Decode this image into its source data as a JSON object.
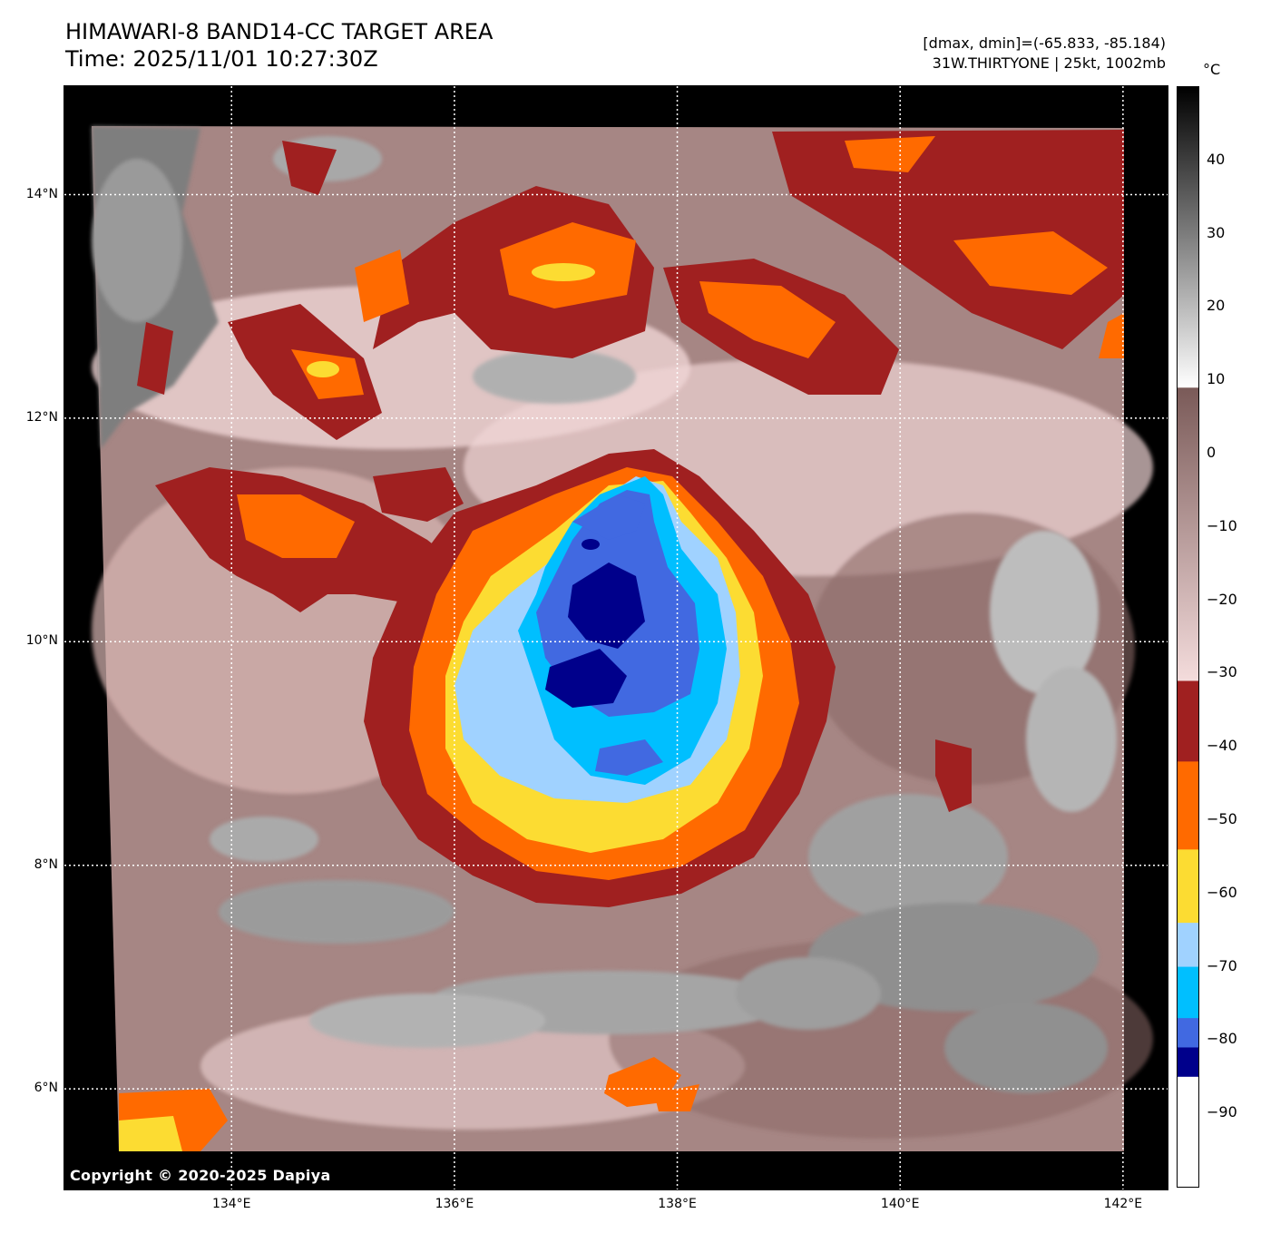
{
  "title_line1": "HIMAWARI-8 BAND14-CC TARGET AREA",
  "title_line2": "Time: 2025/11/01 10:27:30Z",
  "info_line1": "[dmax, dmin]=(-65.833, -85.184)",
  "info_line2": "31W.THIRTYONE | 25kt, 1002mb",
  "copyright": "Copyright © 2020-2025 Dapiya",
  "colorbar": {
    "unit": "°C",
    "tick_labels": [
      "40",
      "30",
      "20",
      "10",
      "0",
      "−10",
      "−20",
      "−30",
      "−40",
      "−50",
      "−60",
      "−70",
      "−80",
      "−90"
    ],
    "tick_values": [
      40,
      30,
      20,
      10,
      0,
      -10,
      -20,
      -30,
      -40,
      -50,
      -60,
      -70,
      -80,
      -90
    ],
    "range": [
      -100,
      50
    ],
    "segments": [
      {
        "from": 50,
        "to": 9,
        "color": "#000000",
        "gradient_to": "#ffffff"
      },
      {
        "from": 9,
        "to": -31,
        "color": "#7a5a58",
        "gradient_to": "#f4dcdc"
      },
      {
        "from": -31,
        "to": -42,
        "color": "#a02020"
      },
      {
        "from": -42,
        "to": -54,
        "color": "#ff6a00"
      },
      {
        "from": -54,
        "to": -64,
        "color": "#fcdc32"
      },
      {
        "from": -64,
        "to": -70,
        "color": "#a0d2ff"
      },
      {
        "from": -70,
        "to": -77,
        "color": "#00bfff"
      },
      {
        "from": -77,
        "to": -81,
        "color": "#4169e1"
      },
      {
        "from": -81,
        "to": -85,
        "color": "#00008b"
      },
      {
        "from": -85,
        "to": -100,
        "color": "#ffffff"
      }
    ]
  },
  "lat_labels": [
    "14°N",
    "12°N",
    "10°N",
    "8°N",
    "6°N"
  ],
  "lon_labels": [
    "134°E",
    "136°E",
    "138°E",
    "140°E",
    "142°E"
  ],
  "map_extent": {
    "lon": [
      132.5,
      142.4
    ],
    "lat": [
      5.1,
      14.97
    ]
  },
  "grid_lons": [
    134,
    136,
    138,
    140,
    142
  ],
  "grid_lats": [
    14,
    12,
    10,
    8,
    6
  ],
  "colors": {
    "cold_ring_1": "#a02020",
    "cold_ring_2": "#ff6a00",
    "cold_ring_3": "#fcdc32",
    "cold_ring_4": "#a0d2ff",
    "cold_ring_5": "#00bfff",
    "cold_ring_6": "#4169e1",
    "cold_ring_7": "#00008b",
    "cloud_pink": "#efd4d4",
    "cloud_brown": "#8c6a68",
    "warm_gray": "#8c8c8c"
  }
}
